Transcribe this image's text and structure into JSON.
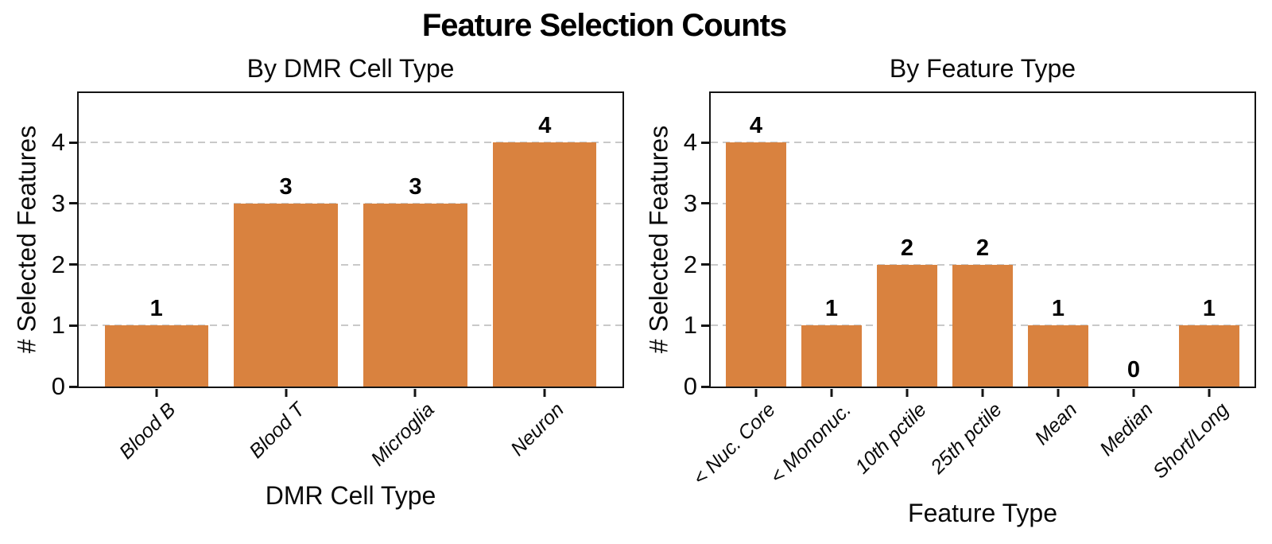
{
  "figure": {
    "title": "Feature Selection Counts",
    "background_color": "#ffffff",
    "bar_color": "#D9823F",
    "gridline_color": "#c9c9c9",
    "spine_color": "#141414"
  },
  "chart_data": [
    {
      "type": "bar",
      "title": "By DMR Cell Type",
      "xlabel": "DMR Cell Type",
      "ylabel": "# Selected Features",
      "categories": [
        "Blood B",
        "Blood T",
        "Microglia",
        "Neuron"
      ],
      "values": [
        1,
        3,
        3,
        4
      ],
      "bar_labels": [
        "1",
        "3",
        "3",
        "4"
      ],
      "yticks": [
        0,
        1,
        2,
        3,
        4
      ],
      "ylim": [
        0,
        4.81
      ],
      "grid": "horizontal dashed",
      "legend": "none",
      "bar_color": "#D9823F"
    },
    {
      "type": "bar",
      "title": "By Feature Type",
      "xlabel": "Feature Type",
      "ylabel": "# Selected Features",
      "categories": [
        "< Nuc. Core",
        "< Mononuc.",
        "10th pctile",
        "25th pctile",
        "Mean",
        "Median",
        "Short/Long"
      ],
      "values": [
        4,
        1,
        2,
        2,
        1,
        0,
        1
      ],
      "bar_labels": [
        "4",
        "1",
        "2",
        "2",
        "1",
        "0",
        "1"
      ],
      "yticks": [
        0,
        1,
        2,
        3,
        4
      ],
      "ylim": [
        0,
        4.81
      ],
      "grid": "horizontal dashed",
      "legend": "none",
      "bar_color": "#D9823F"
    }
  ]
}
